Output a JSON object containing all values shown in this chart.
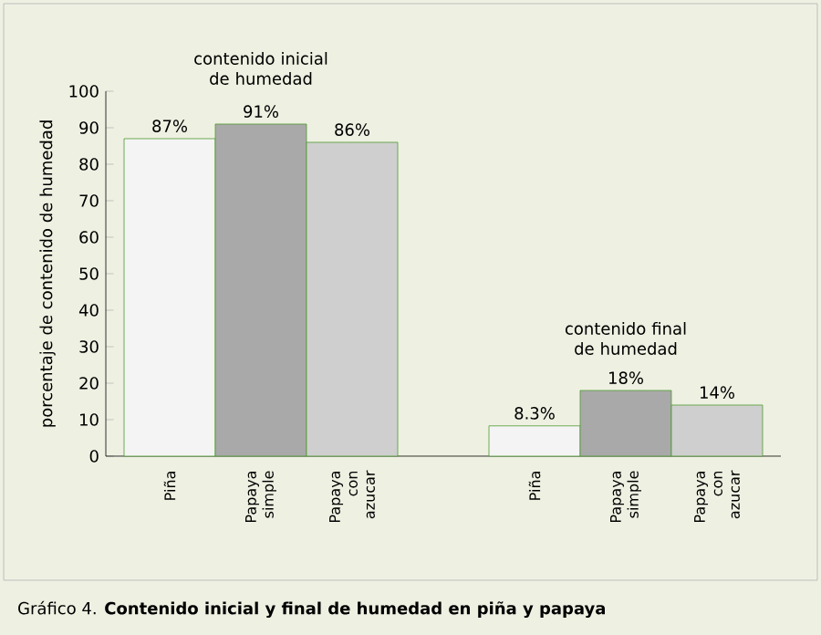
{
  "chart_data": {
    "type": "bar",
    "title": "Gráfico 4. **Contenido inicial y final de humedad en piña y papaya**",
    "ylabel": "porcentaje de contenido de humedad",
    "categories": [
      "Piña",
      "Papaya simple",
      "Papaya con azucar",
      "Piña",
      "Papaya simple",
      "Papaya con azucar"
    ],
    "values": [
      87,
      91,
      86,
      8.3,
      18,
      14
    ],
    "value_labels": [
      "87%",
      "91%",
      "86%",
      "8.3%",
      "18%",
      "14%"
    ],
    "color": "#4e9a2e",
    "colors": [
      "#f4f4f4",
      "#a9a9a9",
      "#cfcfcf",
      "#f4f4f4",
      "#a9a9a9",
      "#cfcfcf"
    ],
    "ylim": [
      0,
      100
    ],
    "yticks": [
      0,
      10,
      20,
      30,
      40,
      50,
      60,
      70,
      80,
      90,
      100
    ],
    "annotations": [
      "contenido inicial de humedad",
      "contenido final de humedad"
    ]
  }
}
